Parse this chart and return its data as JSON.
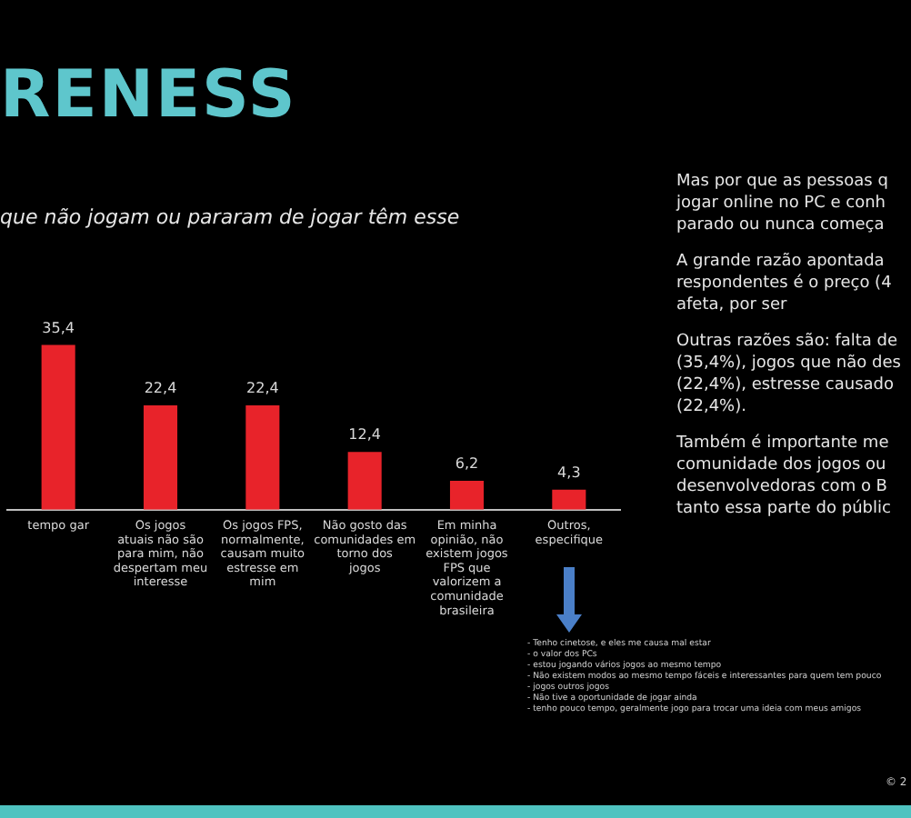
{
  "chart_data": {
    "type": "bar",
    "title": "RENESS",
    "subtitle": "que não jogam ou pararam de jogar têm esse",
    "categories": [
      "tempo gar",
      "Os jogos atuais não são para mim, não despertam meu interesse",
      "Os jogos FPS, normalmente, causam muito estresse em mim",
      "Não gosto das comunidades em torno dos jogos",
      "Em minha opinião, não existem jogos FPS que valorizem a comunidade brasileira",
      "Outros, especifique"
    ],
    "values": [
      35.4,
      22.4,
      22.4,
      12.4,
      6.2,
      4.3
    ],
    "value_labels": [
      "35,4",
      "22,4",
      "22,4",
      "12,4",
      "6,2",
      "4,3"
    ],
    "color": "#e8232a",
    "legend": false,
    "annotations": [
      "Mas por que as pessoas q jogar online no PC e conh parado ou nunca começa",
      "A grande razão apontada respondentes é o preço (4 afeta, por ser",
      "Outras razões são: falta de (35,4%), jogos que não des (22,4%), estresse causado (22,4%).",
      "Também é importante me comunidade dos jogos ou desenvolvedoras com o B tanto essa parte do públic",
      "- Tenho cinetose, e eles me causa mal estar\n- o valor dos PCs\n- estou jogando vários jogos ao mesmo tempo\n- Não existem modos ao mesmo tempo fáceis e interessantes para quem tem pouco\n- jogos outros jogos\n- Não tive a oportunidade de jogar ainda\n- tenho pouco tempo, geralmente jogo para trocar uma ideia com meus amigos",
      "© 2"
    ]
  }
}
